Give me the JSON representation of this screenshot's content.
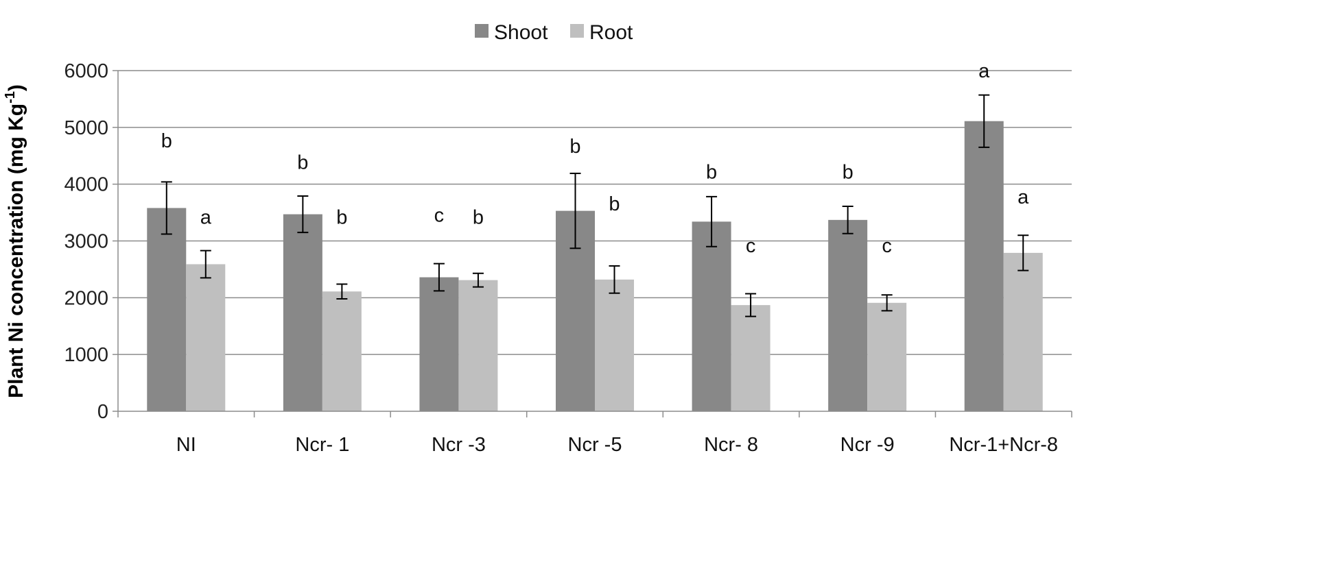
{
  "chart_data": {
    "type": "bar",
    "ylabel": "Plant Ni concentration (mg Kg",
    "ylabel_sup": "-1",
    "ylabel_close": ")",
    "xlabel": "",
    "ylim": [
      0,
      6000
    ],
    "yticks": [
      0,
      1000,
      2000,
      3000,
      4000,
      5000,
      6000
    ],
    "grid": true,
    "legend_position": "top-center",
    "categories": [
      "NI",
      "Ncr- 1",
      "Ncr -3",
      "Ncr -5",
      "Ncr- 8",
      "Ncr -9",
      "Ncr-1+Ncr-8"
    ],
    "series": [
      {
        "name": "Shoot",
        "color": "#888888",
        "values": [
          3580,
          3470,
          2360,
          3530,
          3340,
          3370,
          5110
        ],
        "errors": [
          460,
          320,
          240,
          660,
          440,
          240,
          460
        ],
        "letters": [
          "b",
          "b",
          "c",
          "b",
          "b",
          "b",
          "a"
        ],
        "letter_y": [
          4650,
          4270,
          3340,
          4550,
          4100,
          4100,
          5880
        ]
      },
      {
        "name": "Root",
        "color": "#bfbfbf",
        "values": [
          2590,
          2110,
          2310,
          2320,
          1870,
          1910,
          2790
        ],
        "errors": [
          240,
          130,
          120,
          240,
          200,
          140,
          310
        ],
        "letters": [
          "a",
          "b",
          "b",
          "b",
          "c",
          "c",
          "a"
        ],
        "letter_y": [
          3300,
          3300,
          3300,
          3540,
          2800,
          2800,
          3660
        ]
      }
    ]
  }
}
